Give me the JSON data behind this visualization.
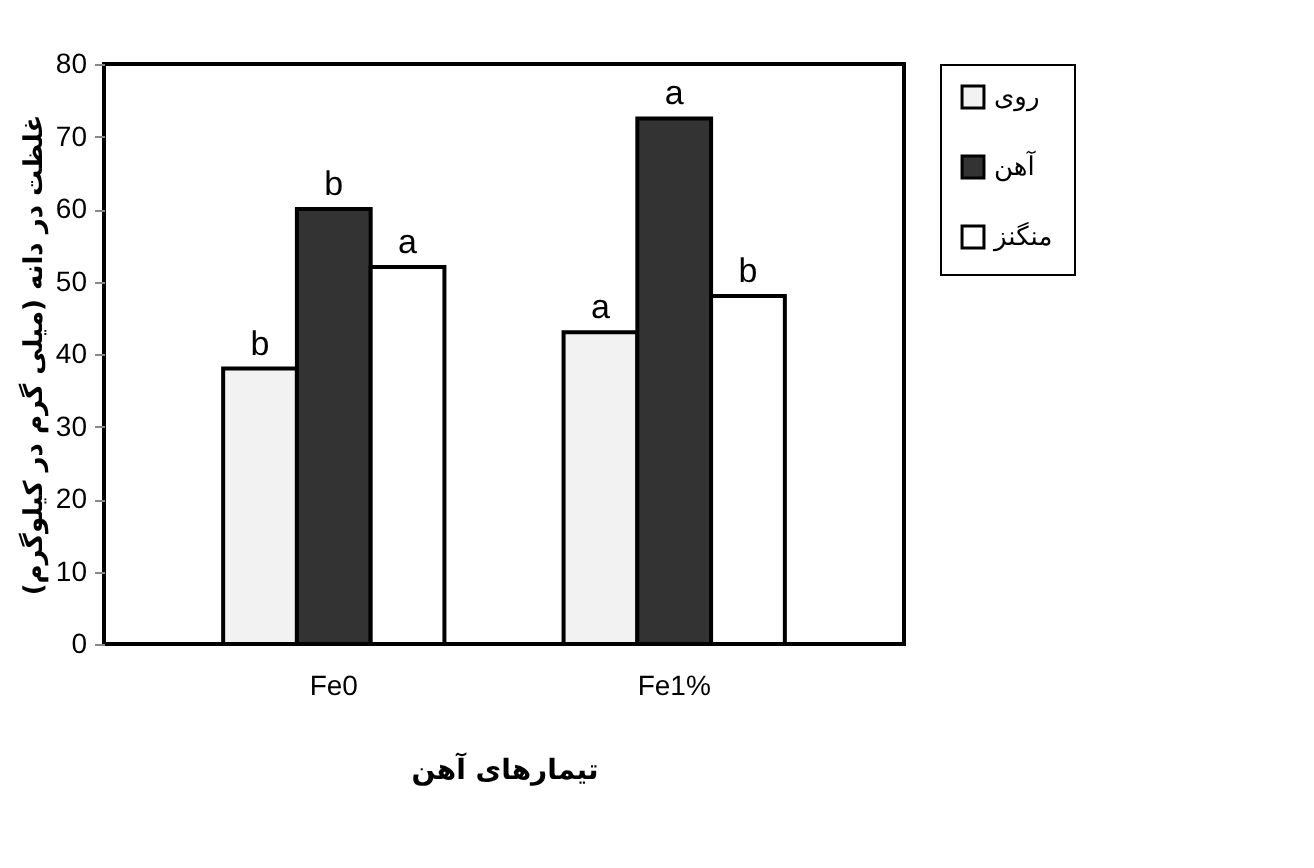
{
  "chart_data": {
    "type": "bar",
    "xlabel": "تیمارهای آهن",
    "ylabel": "غلظت در دانه (میلی گرم در کیلوگرم)",
    "categories": [
      "Fe0",
      "Fe1%"
    ],
    "series": [
      {
        "name": "روی",
        "color": "#f2f2f2",
        "values": [
          38,
          43
        ],
        "value_labels": [
          "b",
          "a"
        ]
      },
      {
        "name": "آهن",
        "color": "#333333",
        "values": [
          60,
          72.5
        ],
        "value_labels": [
          "b",
          "a"
        ]
      },
      {
        "name": "منگنز",
        "color": "#ffffff",
        "values": [
          52,
          48
        ],
        "value_labels": [
          "a",
          "b"
        ]
      }
    ],
    "ylim": [
      0,
      80
    ],
    "yticks": [
      0,
      10,
      20,
      30,
      40,
      50,
      60,
      70,
      80
    ],
    "grid": false,
    "legend": "right"
  }
}
